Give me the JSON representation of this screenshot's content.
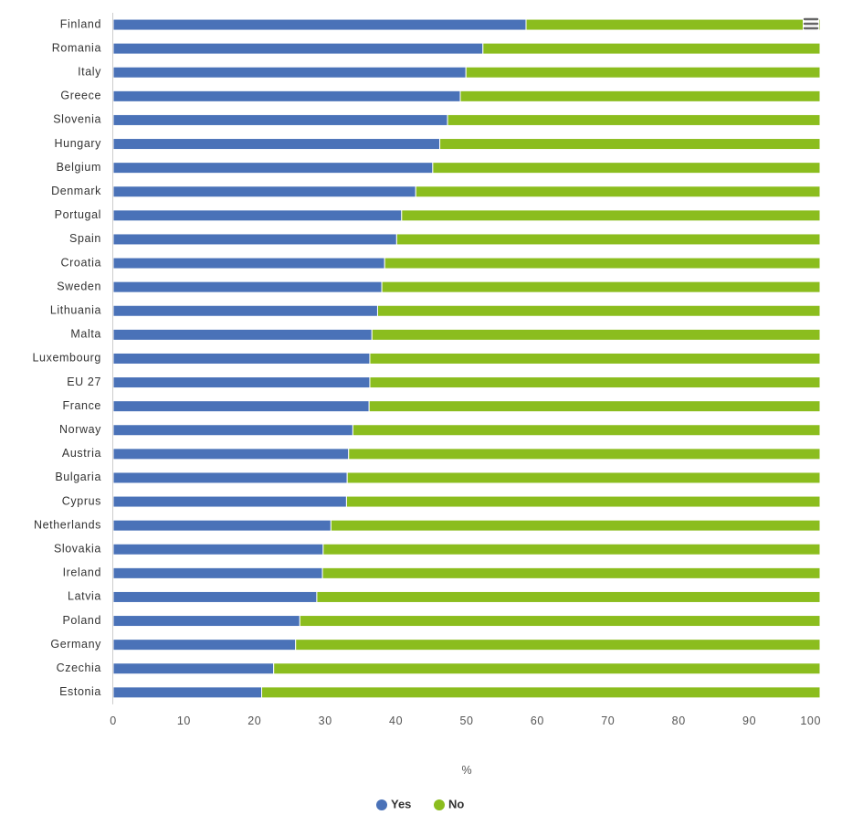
{
  "chart_data": {
    "type": "bar",
    "orientation": "horizontal",
    "stacked": true,
    "categories": [
      "Finland",
      "Romania",
      "Italy",
      "Greece",
      "Slovenia",
      "Hungary",
      "Belgium",
      "Denmark",
      "Portugal",
      "Spain",
      "Croatia",
      "Sweden",
      "Lithuania",
      "Malta",
      "Luxembourg",
      "EU 27",
      "France",
      "Norway",
      "Austria",
      "Bulgaria",
      "Cyprus",
      "Netherlands",
      "Slovakia",
      "Ireland",
      "Latvia",
      "Poland",
      "Germany",
      "Czechia",
      "Estonia"
    ],
    "series": [
      {
        "name": "Yes",
        "color": "#4a72b8",
        "values": [
          58.4,
          52.3,
          49.9,
          49.1,
          47.3,
          46.2,
          45.2,
          42.8,
          40.8,
          40.1,
          38.4,
          38.0,
          37.4,
          36.6,
          36.3,
          36.3,
          36.2,
          33.9,
          33.3,
          33.1,
          33.0,
          30.8,
          29.7,
          29.6,
          28.8,
          26.4,
          25.8,
          22.7,
          21.0
        ]
      },
      {
        "name": "No",
        "color": "#8bbd1e",
        "values": [
          41.6,
          47.7,
          50.1,
          50.9,
          52.7,
          53.8,
          54.8,
          57.2,
          59.2,
          59.9,
          61.6,
          62.0,
          62.6,
          63.4,
          63.7,
          63.7,
          63.8,
          66.1,
          66.7,
          66.9,
          67.0,
          69.2,
          70.3,
          70.4,
          71.2,
          73.6,
          74.2,
          77.3,
          79.0
        ]
      }
    ],
    "xlabel": "%",
    "xlim": [
      0,
      100
    ],
    "xticks": [
      "0",
      "10",
      "20",
      "30",
      "40",
      "50",
      "60",
      "70",
      "80",
      "90",
      "100"
    ],
    "legend_position": "bottom-center",
    "grid": false
  },
  "toolbar": {
    "menu_icon": "hamburger-menu-icon"
  }
}
